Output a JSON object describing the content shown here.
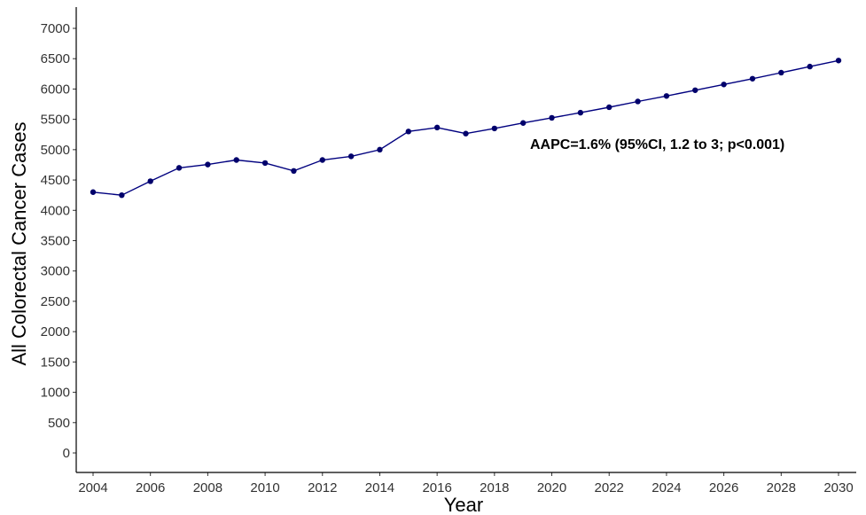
{
  "chart_data": {
    "type": "line",
    "xlabel": "Year",
    "ylabel": "All Colorectal Cancer Cases",
    "xlim": [
      2004,
      2030
    ],
    "ylim": [
      0,
      7000
    ],
    "xticks": [
      2004,
      2006,
      2008,
      2010,
      2012,
      2014,
      2016,
      2018,
      2020,
      2022,
      2024,
      2026,
      2028,
      2030
    ],
    "yticks": [
      0,
      500,
      1000,
      1500,
      2000,
      2500,
      3000,
      3500,
      4000,
      4500,
      5000,
      5500,
      6000,
      6500,
      7000
    ],
    "grid": false,
    "series": [
      {
        "x": [
          2004,
          2005,
          2006,
          2007,
          2008,
          2009,
          2010,
          2011,
          2012,
          2013,
          2014,
          2015,
          2016,
          2017,
          2018,
          2019,
          2020,
          2021,
          2022,
          2023,
          2024,
          2025,
          2026,
          2027,
          2028,
          2029,
          2030
        ],
        "y": [
          4300,
          4250,
          4480,
          4700,
          4755,
          4830,
          4780,
          4650,
          4830,
          4890,
          5000,
          5300,
          5365,
          5265,
          5350,
          5440,
          5525,
          5610,
          5700,
          5795,
          5885,
          5980,
          6075,
          6170,
          6270,
          6370,
          6470
        ]
      }
    ],
    "annotation": "AAPC=1.6% (95%CI, 1.2 to 3; p<0.001)"
  },
  "colors": {
    "line": "#00007f",
    "point": "#00006b",
    "axis": "#000000",
    "text": "#333333"
  }
}
